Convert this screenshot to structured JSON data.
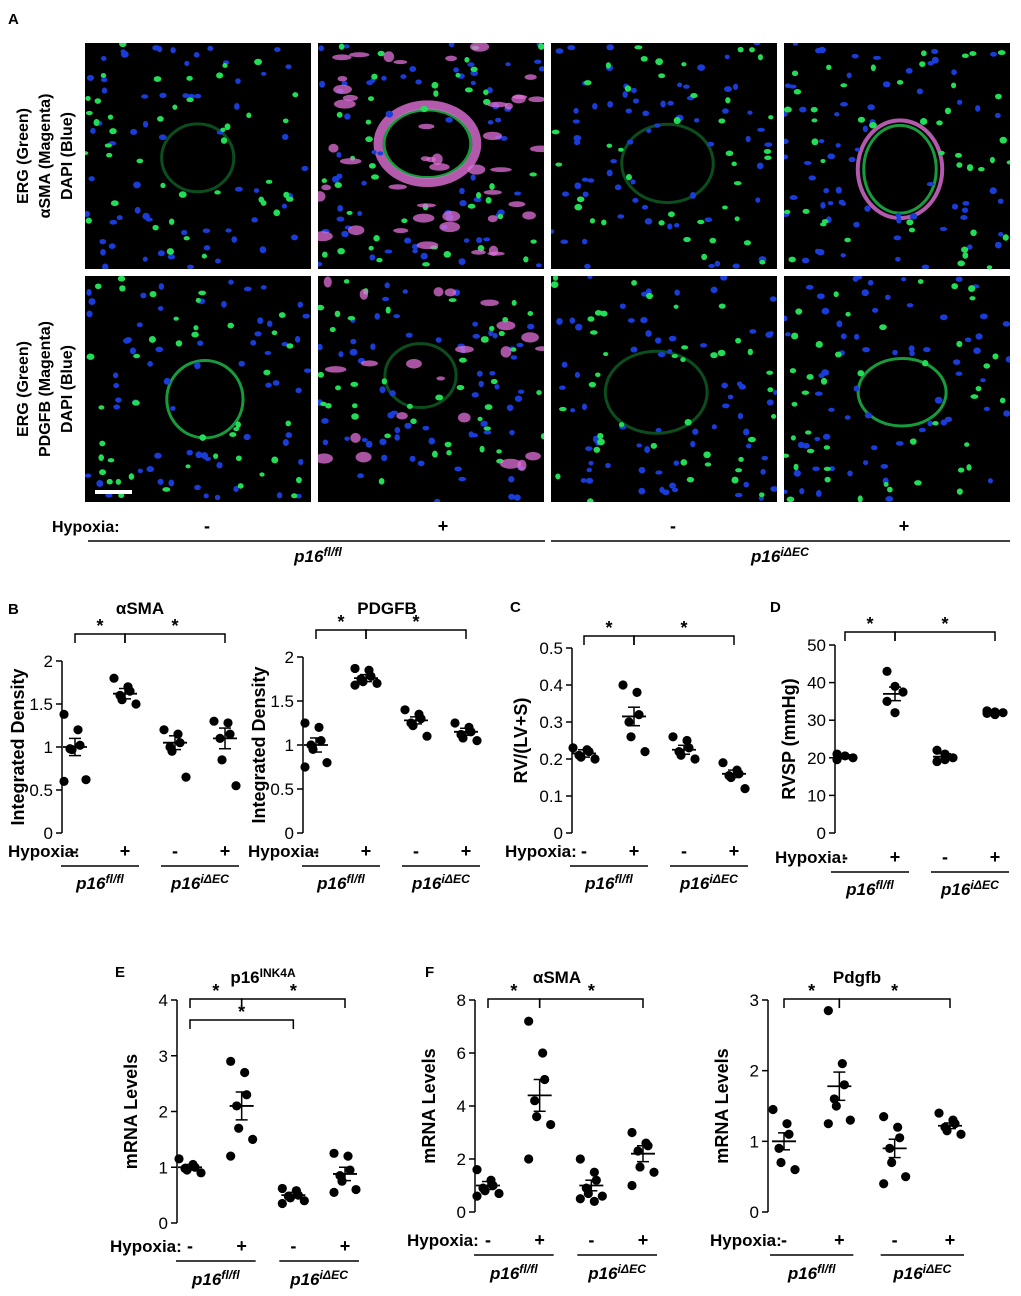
{
  "panel_letters": {
    "A": "A",
    "B": "B",
    "C": "C",
    "D": "D",
    "E": "E",
    "F": "F"
  },
  "microscopy": {
    "row_labels": [
      [
        "ERG (Green)",
        "αSMA (Magenta)",
        "DAPI (Blue)"
      ],
      [
        "ERG (Green)",
        "PDGFB (Magenta)",
        "DAPI (Blue)"
      ]
    ],
    "hypoxia_label": "Hypoxia:",
    "hypoxia_marks": [
      "-",
      "+",
      "-",
      "+"
    ],
    "genotypes": [
      {
        "base": "p16",
        "sup": "fl/fl"
      },
      {
        "base": "p16",
        "sup": "iΔEC"
      }
    ]
  },
  "x_axis": {
    "hypoxia_label": "Hypoxia:",
    "marks": [
      "-",
      "+",
      "-",
      "+"
    ],
    "genotypes": [
      {
        "base": "p16",
        "sup": "fl/fl"
      },
      {
        "base": "p16",
        "sup": "iΔEC"
      }
    ]
  },
  "sig_star": "*",
  "colors": {
    "point": "#000000",
    "text": "#000000",
    "ergGreen": "#22dd55",
    "dapiBlue": "#1a3cd8",
    "magenta": "#e070d8"
  },
  "chart_data": [
    {
      "id": "sma",
      "panel": "B",
      "type": "scatter",
      "title": "αSMA",
      "title_sup": "",
      "ylabel": "Integrated Density",
      "ylim": [
        0,
        2
      ],
      "yticks": [
        0,
        0.5,
        1,
        1.5,
        2
      ],
      "ytick_labels": [
        "0",
        "0.5",
        "1",
        "1.5",
        "2"
      ],
      "groups": [
        {
          "mean": 1.0,
          "sem": 0.1,
          "points": [
            1.38,
            1.2,
            1.02,
            0.98,
            0.97,
            0.62,
            0.6
          ]
        },
        {
          "mean": 1.62,
          "sem": 0.06,
          "points": [
            1.8,
            1.7,
            1.65,
            1.6,
            1.55,
            1.5
          ]
        },
        {
          "mean": 1.05,
          "sem": 0.08,
          "points": [
            1.2,
            1.15,
            1.05,
            1.0,
            0.95,
            0.65
          ]
        },
        {
          "mean": 1.1,
          "sem": 0.12,
          "points": [
            1.3,
            1.28,
            1.15,
            1.1,
            0.85,
            0.55
          ]
        }
      ],
      "comparisons": [
        [
          0,
          1
        ],
        [
          1,
          3
        ]
      ]
    },
    {
      "id": "pdgfb",
      "panel": "B",
      "type": "scatter",
      "title": "PDGFB",
      "title_sup": "",
      "ylabel": "Integrated Density",
      "ylim": [
        0,
        2
      ],
      "yticks": [
        0,
        0.5,
        1,
        1.5,
        2
      ],
      "ytick_labels": [
        "0",
        "0.5",
        "1",
        "1.5",
        "2"
      ],
      "groups": [
        {
          "mean": 1.0,
          "sem": 0.08,
          "points": [
            1.25,
            1.2,
            1.05,
            1.0,
            0.95,
            0.8,
            0.75
          ]
        },
        {
          "mean": 1.76,
          "sem": 0.04,
          "points": [
            1.87,
            1.85,
            1.78,
            1.75,
            1.72,
            1.7,
            1.68
          ]
        },
        {
          "mean": 1.28,
          "sem": 0.04,
          "points": [
            1.4,
            1.35,
            1.3,
            1.25,
            1.22,
            1.1
          ]
        },
        {
          "mean": 1.15,
          "sem": 0.04,
          "points": [
            1.25,
            1.2,
            1.15,
            1.12,
            1.08,
            1.05
          ]
        }
      ],
      "comparisons": [
        [
          0,
          1
        ],
        [
          1,
          3
        ]
      ]
    },
    {
      "id": "rv",
      "panel": "C",
      "type": "scatter",
      "title": "",
      "title_sup": "",
      "ylabel": "RV/(LV+S)",
      "ylim": [
        0,
        0.5
      ],
      "yticks": [
        0,
        0.1,
        0.2,
        0.3,
        0.4,
        0.5
      ],
      "ytick_labels": [
        "0",
        "0.1",
        "0.2",
        "0.3",
        "0.4",
        "0.5"
      ],
      "groups": [
        {
          "mean": 0.215,
          "sem": 0.01,
          "points": [
            0.23,
            0.225,
            0.22,
            0.21,
            0.205,
            0.2
          ]
        },
        {
          "mean": 0.315,
          "sem": 0.025,
          "points": [
            0.4,
            0.38,
            0.32,
            0.3,
            0.26,
            0.22
          ]
        },
        {
          "mean": 0.225,
          "sem": 0.012,
          "points": [
            0.26,
            0.25,
            0.23,
            0.22,
            0.21,
            0.2
          ]
        },
        {
          "mean": 0.16,
          "sem": 0.01,
          "points": [
            0.19,
            0.17,
            0.16,
            0.155,
            0.15,
            0.12
          ]
        }
      ],
      "comparisons": [
        [
          0,
          1
        ],
        [
          1,
          3
        ]
      ]
    },
    {
      "id": "rvsp",
      "panel": "D",
      "type": "scatter",
      "title": "",
      "title_sup": "",
      "ylabel": "RVSP (mmHg)",
      "ylim": [
        0,
        50
      ],
      "yticks": [
        0,
        10,
        20,
        30,
        40,
        50
      ],
      "ytick_labels": [
        "0",
        "10",
        "20",
        "30",
        "40",
        "50"
      ],
      "groups": [
        {
          "mean": 20.3,
          "sem": 0.5,
          "points": [
            21,
            20.5,
            20,
            19.5
          ]
        },
        {
          "mean": 37,
          "sem": 1.8,
          "points": [
            43,
            39,
            37.5,
            35,
            32
          ]
        },
        {
          "mean": 20.3,
          "sem": 0.8,
          "points": [
            22,
            21,
            20,
            19,
            19.5
          ]
        },
        {
          "mean": 32,
          "sem": 0.3,
          "points": [
            32.5,
            32.2,
            32,
            31.8,
            31.5
          ]
        }
      ],
      "comparisons": [
        [
          0,
          1
        ],
        [
          1,
          3
        ]
      ]
    },
    {
      "id": "p16",
      "panel": "E",
      "type": "scatter",
      "title": "p16",
      "title_sup": "INK4A",
      "ylabel": "mRNA Levels",
      "ylim": [
        0,
        4
      ],
      "yticks": [
        0,
        1,
        2,
        3,
        4
      ],
      "ytick_labels": [
        "0",
        "1",
        "2",
        "3",
        "4"
      ],
      "groups": [
        {
          "mean": 1.0,
          "sem": 0.05,
          "points": [
            1.15,
            1.05,
            1.0,
            0.98,
            0.95,
            0.9
          ]
        },
        {
          "mean": 2.1,
          "sem": 0.25,
          "points": [
            2.9,
            2.7,
            2.3,
            2.1,
            1.7,
            1.5,
            1.2
          ]
        },
        {
          "mean": 0.5,
          "sem": 0.05,
          "points": [
            0.62,
            0.58,
            0.5,
            0.48,
            0.45,
            0.4,
            0.35
          ]
        },
        {
          "mean": 0.88,
          "sem": 0.12,
          "points": [
            1.25,
            1.2,
            0.95,
            0.85,
            0.75,
            0.6,
            0.55
          ]
        }
      ],
      "comparisons": [
        [
          0,
          1
        ],
        [
          1,
          3
        ],
        [
          0,
          2
        ]
      ]
    },
    {
      "id": "sma_mrna",
      "panel": "F",
      "type": "scatter",
      "title": "αSMA",
      "title_sup": "",
      "ylabel": "mRNA Levels",
      "ylim": [
        0,
        8
      ],
      "yticks": [
        0,
        2,
        4,
        6,
        8
      ],
      "ytick_labels": [
        "0",
        "2",
        "4",
        "6",
        "8"
      ],
      "groups": [
        {
          "mean": 1.0,
          "sem": 0.15,
          "points": [
            1.6,
            1.2,
            1.0,
            0.9,
            0.8,
            0.7,
            0.6
          ]
        },
        {
          "mean": 4.4,
          "sem": 0.6,
          "points": [
            7.2,
            6.0,
            5.0,
            4.2,
            3.6,
            3.3,
            2.0
          ]
        },
        {
          "mean": 1.0,
          "sem": 0.2,
          "points": [
            2.0,
            1.5,
            1.2,
            0.9,
            0.7,
            0.6,
            0.5,
            0.4
          ]
        },
        {
          "mean": 2.2,
          "sem": 0.3,
          "points": [
            3.0,
            2.6,
            2.5,
            2.3,
            1.7,
            1.5,
            1.0
          ]
        }
      ],
      "comparisons": [
        [
          0,
          1
        ],
        [
          1,
          3
        ]
      ]
    },
    {
      "id": "pdgfb_mrna",
      "panel": "F",
      "type": "scatter",
      "title": "Pdgfb",
      "title_sup": "",
      "ylabel": "mRNA Levels",
      "ylim": [
        0,
        3
      ],
      "yticks": [
        0,
        1,
        2,
        3
      ],
      "ytick_labels": [
        "0",
        "1",
        "2",
        "3"
      ],
      "groups": [
        {
          "mean": 1.0,
          "sem": 0.12,
          "points": [
            1.45,
            1.25,
            1.1,
            0.9,
            0.7,
            0.6
          ]
        },
        {
          "mean": 1.78,
          "sem": 0.2,
          "points": [
            2.85,
            2.1,
            1.8,
            1.6,
            1.5,
            1.3,
            1.25
          ]
        },
        {
          "mean": 0.9,
          "sem": 0.13,
          "points": [
            1.35,
            1.2,
            1.05,
            0.9,
            0.7,
            0.5,
            0.4
          ]
        },
        {
          "mean": 1.22,
          "sem": 0.04,
          "points": [
            1.4,
            1.3,
            1.25,
            1.2,
            1.15,
            1.1
          ]
        }
      ],
      "comparisons": [
        [
          0,
          1
        ],
        [
          1,
          3
        ]
      ]
    }
  ]
}
